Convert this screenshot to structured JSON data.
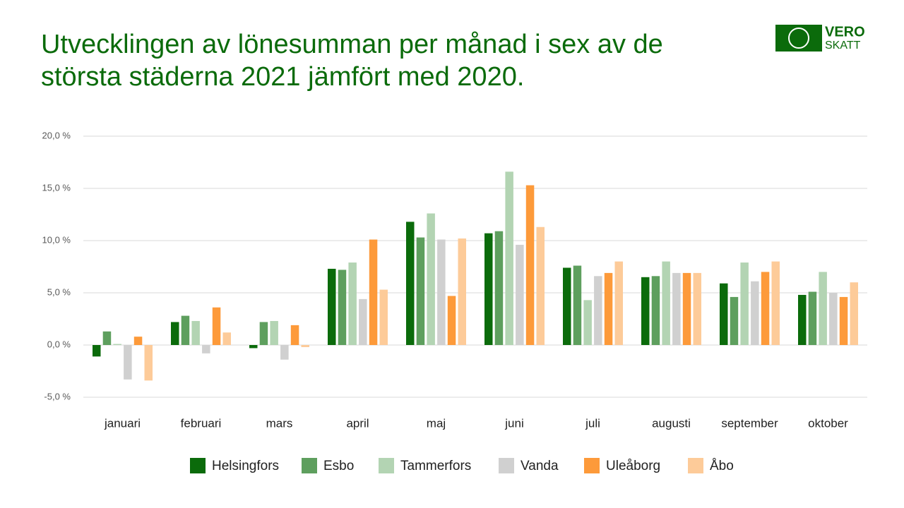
{
  "logo": {
    "line1": "VERO",
    "line2": "SKATT"
  },
  "chart_data": {
    "type": "bar",
    "title": "Utvecklingen av lönesumman per månad i sex av de största städerna 2021 jämfört med 2020.",
    "categories": [
      "januari",
      "februari",
      "mars",
      "april",
      "maj",
      "juni",
      "juli",
      "augusti",
      "september",
      "oktober"
    ],
    "series": [
      {
        "name": "Helsingfors",
        "color": "#0b6b0b",
        "values": [
          -1.1,
          2.2,
          -0.3,
          7.3,
          11.8,
          10.7,
          7.4,
          6.5,
          5.9,
          4.8
        ]
      },
      {
        "name": "Esbo",
        "color": "#5e9f5e",
        "values": [
          1.3,
          2.8,
          2.2,
          7.2,
          10.3,
          10.9,
          7.6,
          6.6,
          4.6,
          5.1
        ]
      },
      {
        "name": "Tammerfors",
        "color": "#b3d4b3",
        "values": [
          0.1,
          2.3,
          2.3,
          7.9,
          12.6,
          16.6,
          4.3,
          8.0,
          7.9,
          7.0
        ]
      },
      {
        "name": "Vanda",
        "color": "#d0d0d0",
        "values": [
          -3.3,
          -0.8,
          -1.4,
          4.4,
          10.1,
          9.6,
          6.6,
          6.9,
          6.1,
          5.0
        ]
      },
      {
        "name": "Uleåborg",
        "color": "#fd9a3a",
        "values": [
          0.8,
          3.6,
          1.9,
          10.1,
          4.7,
          15.3,
          6.9,
          6.9,
          7.0,
          4.6
        ]
      },
      {
        "name": "Åbo",
        "color": "#fdcb99",
        "values": [
          -3.4,
          1.2,
          -0.2,
          5.3,
          10.2,
          11.3,
          8.0,
          6.9,
          8.0,
          6.0
        ]
      }
    ],
    "ylim": [
      -5,
      20
    ],
    "yticks": [
      {
        "value": -5,
        "label": "-5,0 %"
      },
      {
        "value": 0,
        "label": "0,0 %"
      },
      {
        "value": 5,
        "label": "5,0 %"
      },
      {
        "value": 10,
        "label": "10,0 %"
      },
      {
        "value": 15,
        "label": "15,0 %"
      },
      {
        "value": 20,
        "label": "20,0 %"
      }
    ],
    "grid": true,
    "legend": "bottom"
  }
}
